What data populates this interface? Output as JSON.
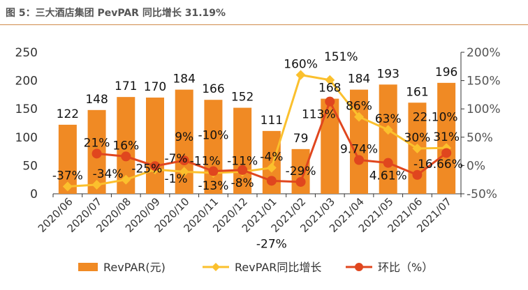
{
  "title": "图 5：三大酒店集团 PevPAR 同比增长 31.19%",
  "chart_data": {
    "type": "bar+line",
    "categories": [
      "2020/06",
      "2020/07",
      "2020/08",
      "2020/09",
      "2020/10",
      "2020/11",
      "2020/12",
      "2021/01",
      "2021/02",
      "2021/03",
      "2021/04",
      "2021/05",
      "2021/06",
      "2021/07"
    ],
    "series": [
      {
        "name": "RevPAR(元)",
        "type": "bar",
        "axis": "left",
        "color": "#f08a24",
        "values": [
          122,
          148,
          171,
          170,
          184,
          166,
          152,
          111,
          79,
          168,
          184,
          193,
          161,
          196
        ],
        "labels": [
          "122",
          "148",
          "171",
          "170",
          "184",
          "166",
          "152",
          "111",
          "79",
          "168",
          "184",
          "193",
          "161",
          "196"
        ]
      },
      {
        "name": "RevPAR同比增长",
        "type": "line",
        "axis": "right",
        "color": "#fbc02d",
        "marker": "diamond",
        "values": [
          -37,
          -34,
          -25,
          -7,
          -11,
          -13,
          -11,
          -4,
          160,
          151,
          86,
          63,
          30,
          31
        ],
        "labels": [
          "-37%",
          "-34%",
          "-25%",
          "-7%",
          "-11%",
          "-13%",
          "-11%",
          "-4%",
          "160%",
          "151%",
          "86%",
          "63%",
          "30%",
          "31%"
        ]
      },
      {
        "name": "环比（%）",
        "type": "line",
        "axis": "right",
        "color": "#e0461e",
        "marker": "circle",
        "values": [
          null,
          21,
          16,
          -1,
          9,
          -10,
          -8,
          -27,
          -29,
          113,
          9.74,
          4.61,
          -16.66,
          22.1
        ],
        "labels": [
          "",
          "21%",
          "16%",
          "-1%",
          "9%",
          "-10%",
          "-8%",
          "-27%",
          "-29%",
          "113%",
          "9.74%",
          "4.61%",
          "-16.66%",
          "22.10%"
        ]
      }
    ],
    "y_left": {
      "min": 0,
      "max": 250,
      "ticks": [
        "0",
        "50",
        "100",
        "150",
        "200",
        "250"
      ]
    },
    "y_right": {
      "min": -50,
      "max": 200,
      "ticks": [
        "-50%",
        "0%",
        "50%",
        "100%",
        "150%",
        "200%"
      ]
    },
    "grid": false,
    "legend": "bottom"
  }
}
